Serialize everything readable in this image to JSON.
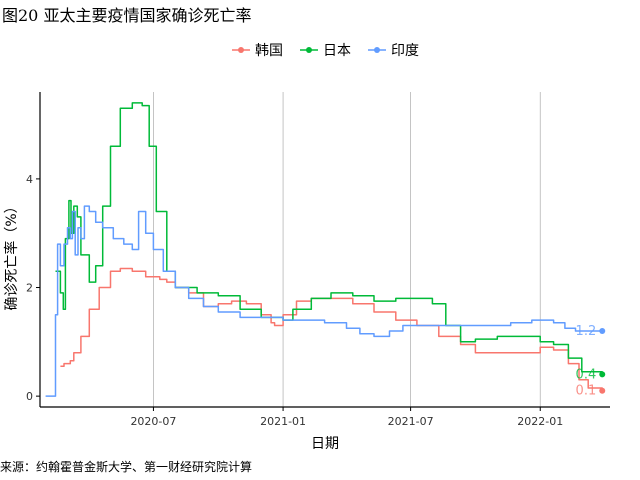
{
  "figure": {
    "title": "图20 亚太主要疫情国家确诊死亡率",
    "source": "来源：约翰霍普金斯大学、第一财经研究院计算"
  },
  "chart_data": {
    "type": "line",
    "xlabel": "日期",
    "ylabel": "确诊死亡率（%）",
    "x_ticks": [
      "2020-07",
      "2021-01",
      "2021-07",
      "2022-01"
    ],
    "y_ticks": [
      0,
      2,
      4
    ],
    "xlim": [
      "2020-01-22",
      "2022-04-10"
    ],
    "ylim": [
      -0.2,
      5.6
    ],
    "grid": "vertical-major",
    "legend_position": "top",
    "colors": {
      "韩国": "#F8766D",
      "日本": "#00BA38",
      "印度": "#619CFF"
    },
    "series": [
      {
        "name": "韩国",
        "color": "#F8766D",
        "end_label": "0.1",
        "points": [
          [
            "2020-02-20",
            0.55
          ],
          [
            "2020-02-25",
            0.6
          ],
          [
            "2020-03-05",
            0.65
          ],
          [
            "2020-03-10",
            0.8
          ],
          [
            "2020-03-20",
            1.1
          ],
          [
            "2020-04-01",
            1.6
          ],
          [
            "2020-04-15",
            2.0
          ],
          [
            "2020-05-01",
            2.3
          ],
          [
            "2020-05-15",
            2.35
          ],
          [
            "2020-06-01",
            2.3
          ],
          [
            "2020-06-20",
            2.2
          ],
          [
            "2020-07-10",
            2.15
          ],
          [
            "2020-07-20",
            2.1
          ],
          [
            "2020-08-01",
            2.0
          ],
          [
            "2020-08-20",
            1.9
          ],
          [
            "2020-09-10",
            1.65
          ],
          [
            "2020-10-01",
            1.7
          ],
          [
            "2020-10-20",
            1.75
          ],
          [
            "2020-11-10",
            1.7
          ],
          [
            "2020-12-01",
            1.5
          ],
          [
            "2020-12-15",
            1.35
          ],
          [
            "2020-12-20",
            1.3
          ],
          [
            "2021-01-01",
            1.5
          ],
          [
            "2021-01-20",
            1.75
          ],
          [
            "2021-02-10",
            1.8
          ],
          [
            "2021-03-10",
            1.8
          ],
          [
            "2021-04-10",
            1.7
          ],
          [
            "2021-05-10",
            1.55
          ],
          [
            "2021-06-10",
            1.4
          ],
          [
            "2021-07-10",
            1.3
          ],
          [
            "2021-08-10",
            1.1
          ],
          [
            "2021-09-10",
            0.95
          ],
          [
            "2021-10-01",
            0.8
          ],
          [
            "2021-11-01",
            0.8
          ],
          [
            "2021-12-01",
            0.8
          ],
          [
            "2022-01-01",
            0.9
          ],
          [
            "2022-01-20",
            0.85
          ],
          [
            "2022-02-10",
            0.6
          ],
          [
            "2022-02-25",
            0.3
          ],
          [
            "2022-03-10",
            0.15
          ],
          [
            "2022-03-30",
            0.1
          ]
        ]
      },
      {
        "name": "日本",
        "color": "#00BA38",
        "end_label": "0.4",
        "points": [
          [
            "2020-02-13",
            2.3
          ],
          [
            "2020-02-20",
            1.9
          ],
          [
            "2020-02-24",
            1.6
          ],
          [
            "2020-02-27",
            2.9
          ],
          [
            "2020-03-03",
            3.6
          ],
          [
            "2020-03-06",
            3.0
          ],
          [
            "2020-03-10",
            3.5
          ],
          [
            "2020-03-15",
            3.3
          ],
          [
            "2020-03-20",
            2.6
          ],
          [
            "2020-04-01",
            2.1
          ],
          [
            "2020-04-10",
            2.4
          ],
          [
            "2020-04-20",
            3.5
          ],
          [
            "2020-05-01",
            4.6
          ],
          [
            "2020-05-15",
            5.3
          ],
          [
            "2020-06-01",
            5.4
          ],
          [
            "2020-06-15",
            5.35
          ],
          [
            "2020-06-25",
            4.6
          ],
          [
            "2020-07-05",
            3.4
          ],
          [
            "2020-07-20",
            2.3
          ],
          [
            "2020-08-01",
            2.0
          ],
          [
            "2020-09-01",
            1.9
          ],
          [
            "2020-10-01",
            1.85
          ],
          [
            "2020-11-01",
            1.6
          ],
          [
            "2020-12-01",
            1.45
          ],
          [
            "2021-01-01",
            1.4
          ],
          [
            "2021-01-15",
            1.6
          ],
          [
            "2021-02-10",
            1.8
          ],
          [
            "2021-03-10",
            1.9
          ],
          [
            "2021-04-10",
            1.85
          ],
          [
            "2021-05-10",
            1.75
          ],
          [
            "2021-06-10",
            1.8
          ],
          [
            "2021-07-10",
            1.8
          ],
          [
            "2021-08-01",
            1.7
          ],
          [
            "2021-08-20",
            1.3
          ],
          [
            "2021-09-10",
            1.0
          ],
          [
            "2021-10-01",
            1.05
          ],
          [
            "2021-11-01",
            1.1
          ],
          [
            "2021-12-01",
            1.1
          ],
          [
            "2022-01-01",
            1.0
          ],
          [
            "2022-01-20",
            0.95
          ],
          [
            "2022-02-10",
            0.7
          ],
          [
            "2022-03-01",
            0.45
          ],
          [
            "2022-03-30",
            0.4
          ]
        ]
      },
      {
        "name": "印度",
        "color": "#619CFF",
        "end_label": "1.2",
        "points": [
          [
            "2020-01-30",
            0.0
          ],
          [
            "2020-02-10",
            0.0
          ],
          [
            "2020-02-13",
            1.5
          ],
          [
            "2020-02-16",
            2.8
          ],
          [
            "2020-02-20",
            2.4
          ],
          [
            "2020-02-25",
            2.8
          ],
          [
            "2020-03-01",
            3.1
          ],
          [
            "2020-03-05",
            2.9
          ],
          [
            "2020-03-08",
            3.4
          ],
          [
            "2020-03-12",
            2.6
          ],
          [
            "2020-03-16",
            3.1
          ],
          [
            "2020-03-20",
            2.9
          ],
          [
            "2020-03-25",
            3.5
          ],
          [
            "2020-04-01",
            3.4
          ],
          [
            "2020-04-10",
            3.2
          ],
          [
            "2020-04-20",
            3.1
          ],
          [
            "2020-05-05",
            2.9
          ],
          [
            "2020-05-20",
            2.8
          ],
          [
            "2020-06-01",
            2.7
          ],
          [
            "2020-06-10",
            3.4
          ],
          [
            "2020-06-20",
            3.0
          ],
          [
            "2020-07-01",
            2.7
          ],
          [
            "2020-07-15",
            2.3
          ],
          [
            "2020-08-01",
            2.0
          ],
          [
            "2020-08-20",
            1.8
          ],
          [
            "2020-09-10",
            1.65
          ],
          [
            "2020-10-01",
            1.55
          ],
          [
            "2020-11-01",
            1.45
          ],
          [
            "2020-12-01",
            1.45
          ],
          [
            "2021-01-01",
            1.4
          ],
          [
            "2021-02-01",
            1.4
          ],
          [
            "2021-03-01",
            1.35
          ],
          [
            "2021-04-01",
            1.25
          ],
          [
            "2021-04-20",
            1.15
          ],
          [
            "2021-05-10",
            1.1
          ],
          [
            "2021-06-01",
            1.2
          ],
          [
            "2021-06-20",
            1.3
          ],
          [
            "2021-07-20",
            1.3
          ],
          [
            "2021-08-20",
            1.3
          ],
          [
            "2021-09-20",
            1.3
          ],
          [
            "2021-10-20",
            1.3
          ],
          [
            "2021-11-20",
            1.35
          ],
          [
            "2021-12-20",
            1.4
          ],
          [
            "2022-01-20",
            1.35
          ],
          [
            "2022-02-05",
            1.25
          ],
          [
            "2022-02-20",
            1.2
          ],
          [
            "2022-03-30",
            1.2
          ]
        ]
      }
    ]
  }
}
